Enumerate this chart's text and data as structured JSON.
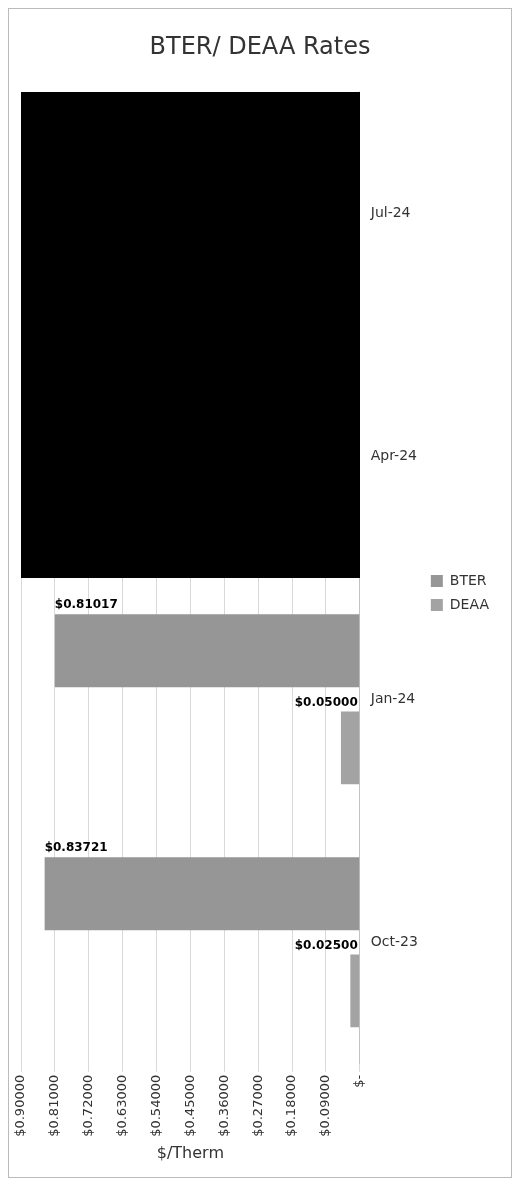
{
  "chart_data": {
    "type": "bar",
    "orientation": "horizontal",
    "title": "BTER/ DEAA Rates",
    "xlabel": "$/Therm",
    "categories": [
      "Jul-24",
      "Apr-24",
      "Jan-24",
      "Oct-23"
    ],
    "series": [
      {
        "name": "BTER",
        "color": "#969696",
        "values": [
          null,
          null,
          0.81017,
          0.83721
        ],
        "value_labels": [
          null,
          null,
          "$0.81017",
          "$0.83721"
        ]
      },
      {
        "name": "DEAA",
        "color": "#a3a3a3",
        "values": [
          null,
          null,
          0.05,
          0.025
        ],
        "value_labels": [
          null,
          null,
          "$0.05000",
          "$0.02500"
        ]
      }
    ],
    "xlim": [
      0.9,
      0
    ],
    "xticks": [
      {
        "value": 0.9,
        "label": "$0.90000"
      },
      {
        "value": 0.81,
        "label": "$0.81000"
      },
      {
        "value": 0.72,
        "label": "$0.72000"
      },
      {
        "value": 0.63,
        "label": "$0.63000"
      },
      {
        "value": 0.54,
        "label": "$0.54000"
      },
      {
        "value": 0.45,
        "label": "$0.45000"
      },
      {
        "value": 0.36,
        "label": "$0.36000"
      },
      {
        "value": 0.27,
        "label": "$0.27000"
      },
      {
        "value": 0.18,
        "label": "$0.18000"
      },
      {
        "value": 0.09,
        "label": "$0.09000"
      },
      {
        "value": 0,
        "label": "$-"
      }
    ],
    "grid": "x",
    "legend": "right"
  }
}
